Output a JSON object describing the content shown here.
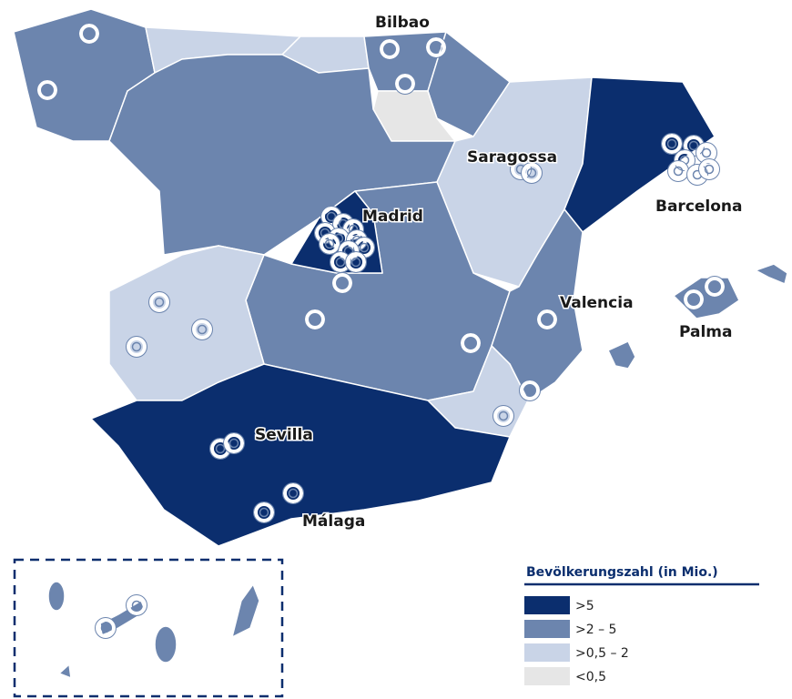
{
  "cities": [
    "Bilbao",
    "Saragossa",
    "Barcelona",
    "Madrid",
    "Valencia",
    "Palma",
    "Sevilla",
    "Málaga"
  ],
  "legend": {
    "title": "Bevölkerungszahl (in Mio.)",
    "items": [
      {
        "label": ">5",
        "color": "#0b2e6e"
      },
      {
        "label": ">2 – 5",
        "color": "#6c85ae"
      },
      {
        "label": ">0,5 – 2",
        "color": "#c9d4e7"
      },
      {
        "label": "<0,5",
        "color": "#e6e6e6"
      }
    ]
  }
}
